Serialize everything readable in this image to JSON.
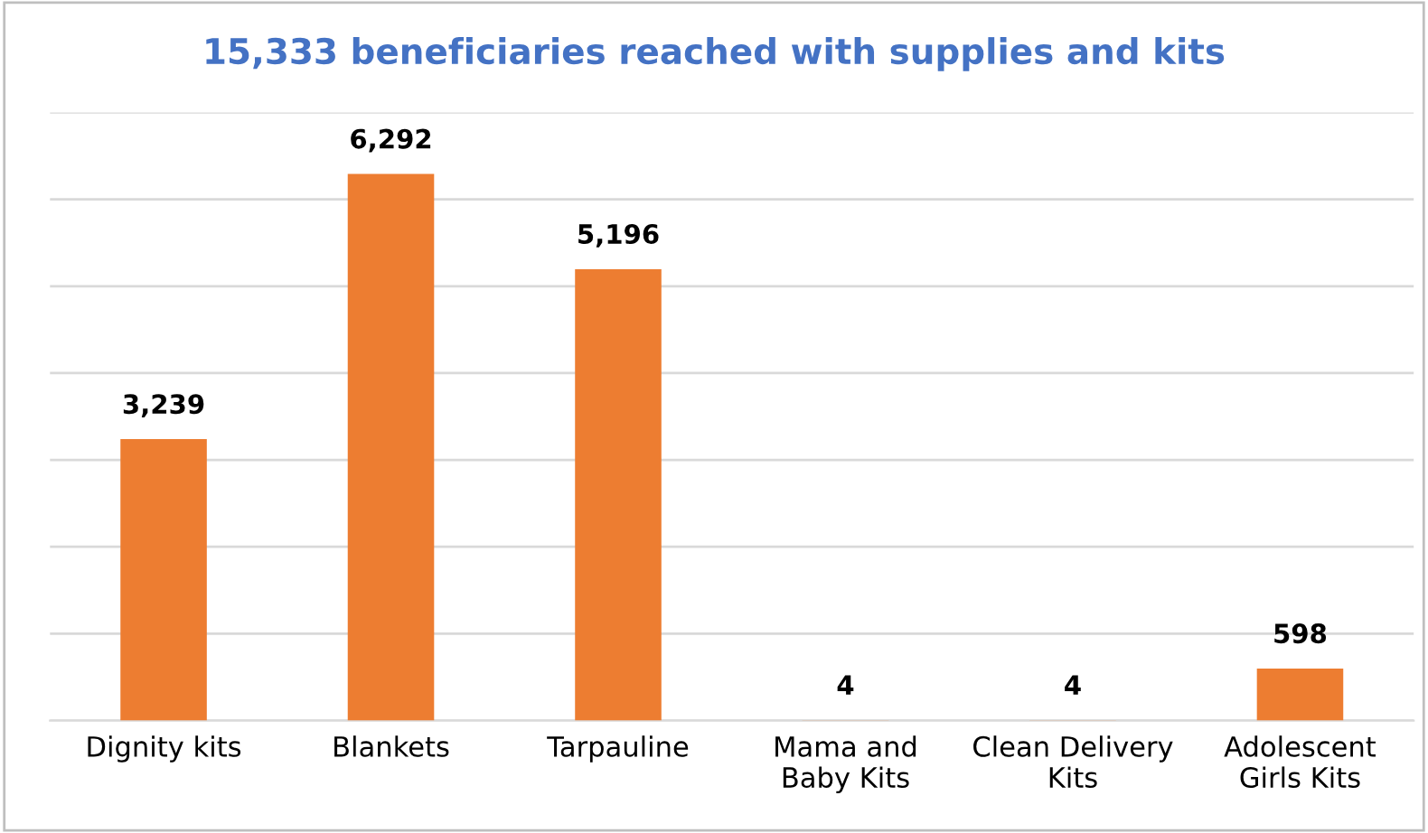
{
  "chart_data": {
    "type": "bar",
    "title": "15,333 beneficiaries reached with supplies and kits",
    "categories": [
      "Dignity kits",
      "Blankets",
      "Tarpauline",
      "Mama and\nBaby Kits",
      "Clean Delivery\nKits",
      "Adolescent\nGirls Kits"
    ],
    "values": [
      3239,
      6292,
      5196,
      4,
      4,
      598
    ],
    "color": "#ed7d31",
    "ylim": [
      0,
      7000
    ],
    "yticks": [
      {
        "value": 0,
        "label": null
      },
      {
        "value": 1000,
        "label": null
      },
      {
        "value": 2000,
        "label": null
      },
      {
        "value": 3000,
        "label": null
      },
      {
        "value": 4000,
        "label": null
      },
      {
        "value": 5000,
        "label": null
      },
      {
        "value": 6000,
        "label": null
      },
      {
        "value": 7000,
        "label": null
      }
    ],
    "value_labels": [
      "3,239",
      "6,292",
      "5,196",
      "4",
      "4",
      "598"
    ],
    "grid": "y",
    "tick_labels": "x"
  }
}
